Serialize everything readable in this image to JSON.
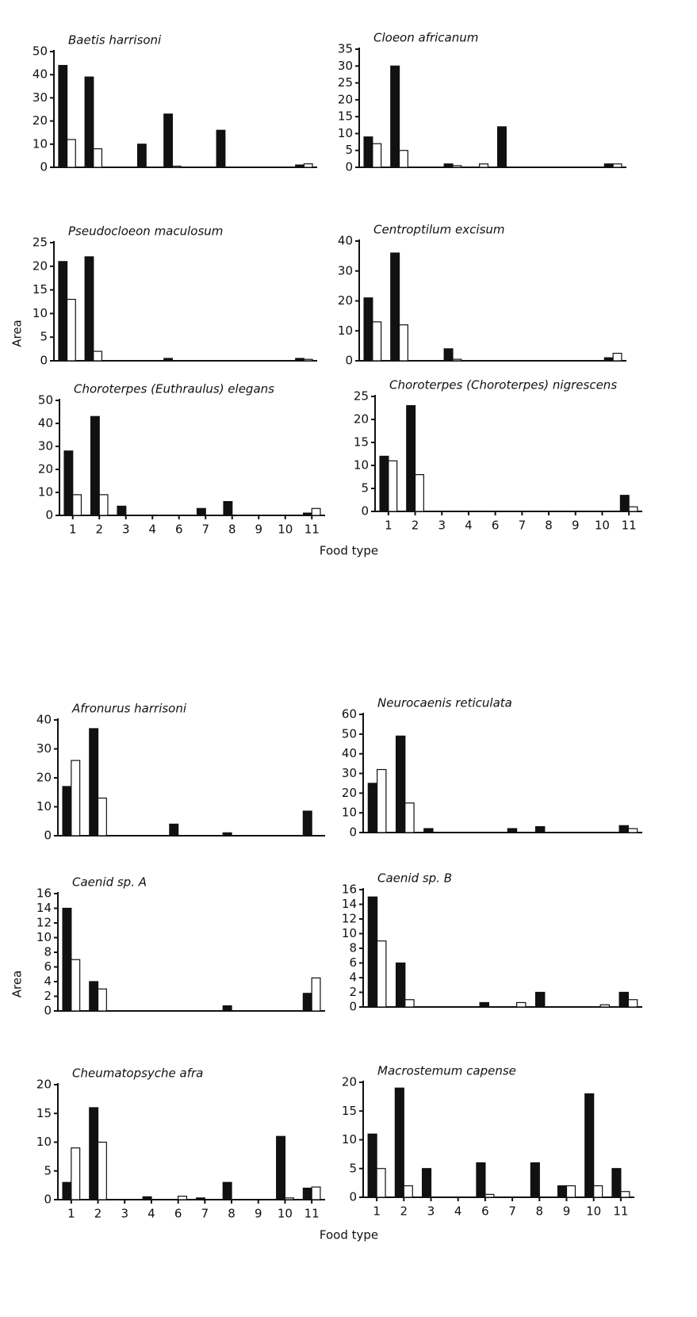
{
  "chart_data": [
    {
      "type": "bar",
      "title": "Baetis harrisoni",
      "categories": [
        null,
        null,
        null,
        null,
        null,
        null,
        null,
        null,
        null,
        null
      ],
      "series": [
        {
          "color": "#111111",
          "values": [
            44,
            39,
            0,
            10,
            23,
            0,
            16,
            0,
            0,
            1
          ]
        },
        {
          "color": "#ffffff",
          "values": [
            12,
            8,
            0,
            0,
            0.5,
            0,
            0,
            0,
            0,
            1.5
          ]
        }
      ],
      "ylim": [
        0,
        50
      ],
      "yticks": [
        0,
        10,
        20,
        30,
        40,
        50
      ]
    },
    {
      "type": "bar",
      "title": "Cloeon africanum",
      "categories": [
        null,
        null,
        null,
        null,
        null,
        null,
        null,
        null,
        null,
        null
      ],
      "series": [
        {
          "color": "#111111",
          "values": [
            9,
            30,
            0,
            1,
            0,
            12,
            0,
            0,
            0,
            1
          ]
        },
        {
          "color": "#ffffff",
          "values": [
            7,
            5,
            0,
            0.5,
            1,
            0,
            0,
            0,
            0,
            1
          ]
        }
      ],
      "ylim": [
        0,
        35
      ],
      "yticks": [
        0,
        5,
        10,
        15,
        20,
        25,
        30,
        35
      ]
    },
    {
      "type": "bar",
      "title": "Pseudocloeon maculosum",
      "ylabel": "Area",
      "categories": [
        null,
        null,
        null,
        null,
        null,
        null,
        null,
        null,
        null,
        null
      ],
      "series": [
        {
          "color": "#111111",
          "values": [
            21,
            22,
            0,
            0,
            0.5,
            0,
            0,
            0,
            0,
            0.5
          ]
        },
        {
          "color": "#ffffff",
          "values": [
            13,
            2,
            0,
            0,
            0,
            0,
            0,
            0,
            0,
            0.3
          ]
        }
      ],
      "ylim": [
        0,
        25
      ],
      "yticks": [
        0,
        5,
        10,
        15,
        20,
        25
      ]
    },
    {
      "type": "bar",
      "title": "Centroptilum excisum",
      "categories": [
        null,
        null,
        null,
        null,
        null,
        null,
        null,
        null,
        null,
        null
      ],
      "series": [
        {
          "color": "#111111",
          "values": [
            21,
            36,
            0,
            4,
            0,
            0,
            0,
            0,
            0,
            1
          ]
        },
        {
          "color": "#ffffff",
          "values": [
            13,
            12,
            0,
            0.5,
            0,
            0,
            0,
            0,
            0,
            2.5
          ]
        }
      ],
      "ylim": [
        0,
        40
      ],
      "yticks": [
        0,
        10,
        20,
        30,
        40
      ]
    },
    {
      "type": "bar",
      "title": "Choroterpes (Euthraulus) elegans",
      "xlabel": "Food type",
      "categories": [
        "1",
        "2",
        "3",
        "4",
        "6",
        "7",
        "8",
        "9",
        "10",
        "11"
      ],
      "series": [
        {
          "color": "#111111",
          "values": [
            28,
            43,
            4,
            0,
            0,
            3,
            6,
            0,
            0,
            1
          ]
        },
        {
          "color": "#ffffff",
          "values": [
            9,
            9,
            0,
            0,
            0,
            0,
            0,
            0,
            0,
            3
          ]
        }
      ],
      "ylim": [
        0,
        50
      ],
      "yticks": [
        0,
        10,
        20,
        30,
        40,
        50
      ]
    },
    {
      "type": "bar",
      "title": "Choroterpes (Choroterpes) nigrescens",
      "categories": [
        "1",
        "2",
        "3",
        "4",
        "6",
        "7",
        "8",
        "9",
        "10",
        "11"
      ],
      "series": [
        {
          "color": "#111111",
          "values": [
            12,
            23,
            0,
            0,
            0,
            0,
            0,
            0,
            0,
            3.5
          ]
        },
        {
          "color": "#ffffff",
          "values": [
            11,
            8,
            0,
            0,
            0,
            0,
            0,
            0,
            0,
            1
          ]
        }
      ],
      "ylim": [
        0,
        25
      ],
      "yticks": [
        0,
        5,
        10,
        15,
        20,
        25
      ]
    },
    {
      "type": "bar",
      "title": "Afronurus harrisoni",
      "categories": [
        null,
        null,
        null,
        null,
        null,
        null,
        null,
        null,
        null,
        null
      ],
      "series": [
        {
          "color": "#111111",
          "values": [
            17,
            37,
            0,
            0,
            4,
            0,
            1,
            0,
            0,
            8.5
          ]
        },
        {
          "color": "#ffffff",
          "values": [
            26,
            13,
            0,
            0,
            0,
            0,
            0,
            0,
            0,
            0
          ]
        }
      ],
      "ylim": [
        0,
        40
      ],
      "yticks": [
        0,
        10,
        20,
        30,
        40
      ]
    },
    {
      "type": "bar",
      "title": "Neurocaenis reticulata",
      "categories": [
        null,
        null,
        null,
        null,
        null,
        null,
        null,
        null,
        null,
        null
      ],
      "series": [
        {
          "color": "#111111",
          "values": [
            25,
            49,
            2,
            0,
            0,
            2,
            3,
            0,
            0,
            3.5
          ]
        },
        {
          "color": "#ffffff",
          "values": [
            32,
            15,
            0,
            0,
            0,
            0,
            0,
            0,
            0,
            2
          ]
        }
      ],
      "ylim": [
        0,
        60
      ],
      "yticks": [
        0,
        10,
        20,
        30,
        40,
        50,
        60
      ]
    },
    {
      "type": "bar",
      "title": "Caenid sp. A",
      "ylabel": "Area",
      "categories": [
        null,
        null,
        null,
        null,
        null,
        null,
        null,
        null,
        null,
        null
      ],
      "series": [
        {
          "color": "#111111",
          "values": [
            14,
            4,
            0,
            0,
            0,
            0,
            0.7,
            0,
            0,
            2.4
          ]
        },
        {
          "color": "#ffffff",
          "values": [
            7,
            3,
            0,
            0,
            0,
            0,
            0,
            0,
            0,
            4.5
          ]
        }
      ],
      "ylim": [
        0,
        16
      ],
      "yticks": [
        0,
        2,
        4,
        6,
        8,
        10,
        12,
        14,
        16
      ]
    },
    {
      "type": "bar",
      "title": "Caenid sp. B",
      "categories": [
        null,
        null,
        null,
        null,
        null,
        null,
        null,
        null,
        null,
        null
      ],
      "series": [
        {
          "color": "#111111",
          "values": [
            15,
            6,
            0,
            0,
            0.6,
            0,
            2,
            0,
            0,
            2
          ]
        },
        {
          "color": "#ffffff",
          "values": [
            9,
            1,
            0,
            0,
            0,
            0.6,
            0,
            0,
            0.3,
            1
          ]
        }
      ],
      "ylim": [
        0,
        16
      ],
      "yticks": [
        0,
        2,
        4,
        6,
        8,
        10,
        12,
        14,
        16
      ]
    },
    {
      "type": "bar",
      "title": "Cheumatopsyche afra",
      "xlabel": "Food type",
      "categories": [
        "1",
        "2",
        "3",
        "4",
        "6",
        "7",
        "8",
        "9",
        "10",
        "11"
      ],
      "series": [
        {
          "color": "#111111",
          "values": [
            3,
            16,
            0,
            0.5,
            0,
            0.3,
            3,
            0,
            11,
            2
          ]
        },
        {
          "color": "#ffffff",
          "values": [
            9,
            10,
            0,
            0,
            0.6,
            0,
            0,
            0,
            0.3,
            2.2
          ]
        }
      ],
      "ylim": [
        0,
        20
      ],
      "yticks": [
        0,
        5,
        10,
        15,
        20
      ]
    },
    {
      "type": "bar",
      "title": "Macrostemum capense",
      "categories": [
        "1",
        "2",
        "3",
        "4",
        "6",
        "7",
        "8",
        "9",
        "10",
        "11"
      ],
      "series": [
        {
          "color": "#111111",
          "values": [
            11,
            19,
            5,
            0,
            6,
            0,
            6,
            2,
            18,
            5
          ]
        },
        {
          "color": "#ffffff",
          "values": [
            5,
            2,
            0,
            0,
            0.5,
            0,
            0,
            2,
            2,
            1
          ]
        }
      ],
      "ylim": [
        0,
        20
      ],
      "yticks": [
        0,
        5,
        10,
        15,
        20
      ]
    }
  ]
}
